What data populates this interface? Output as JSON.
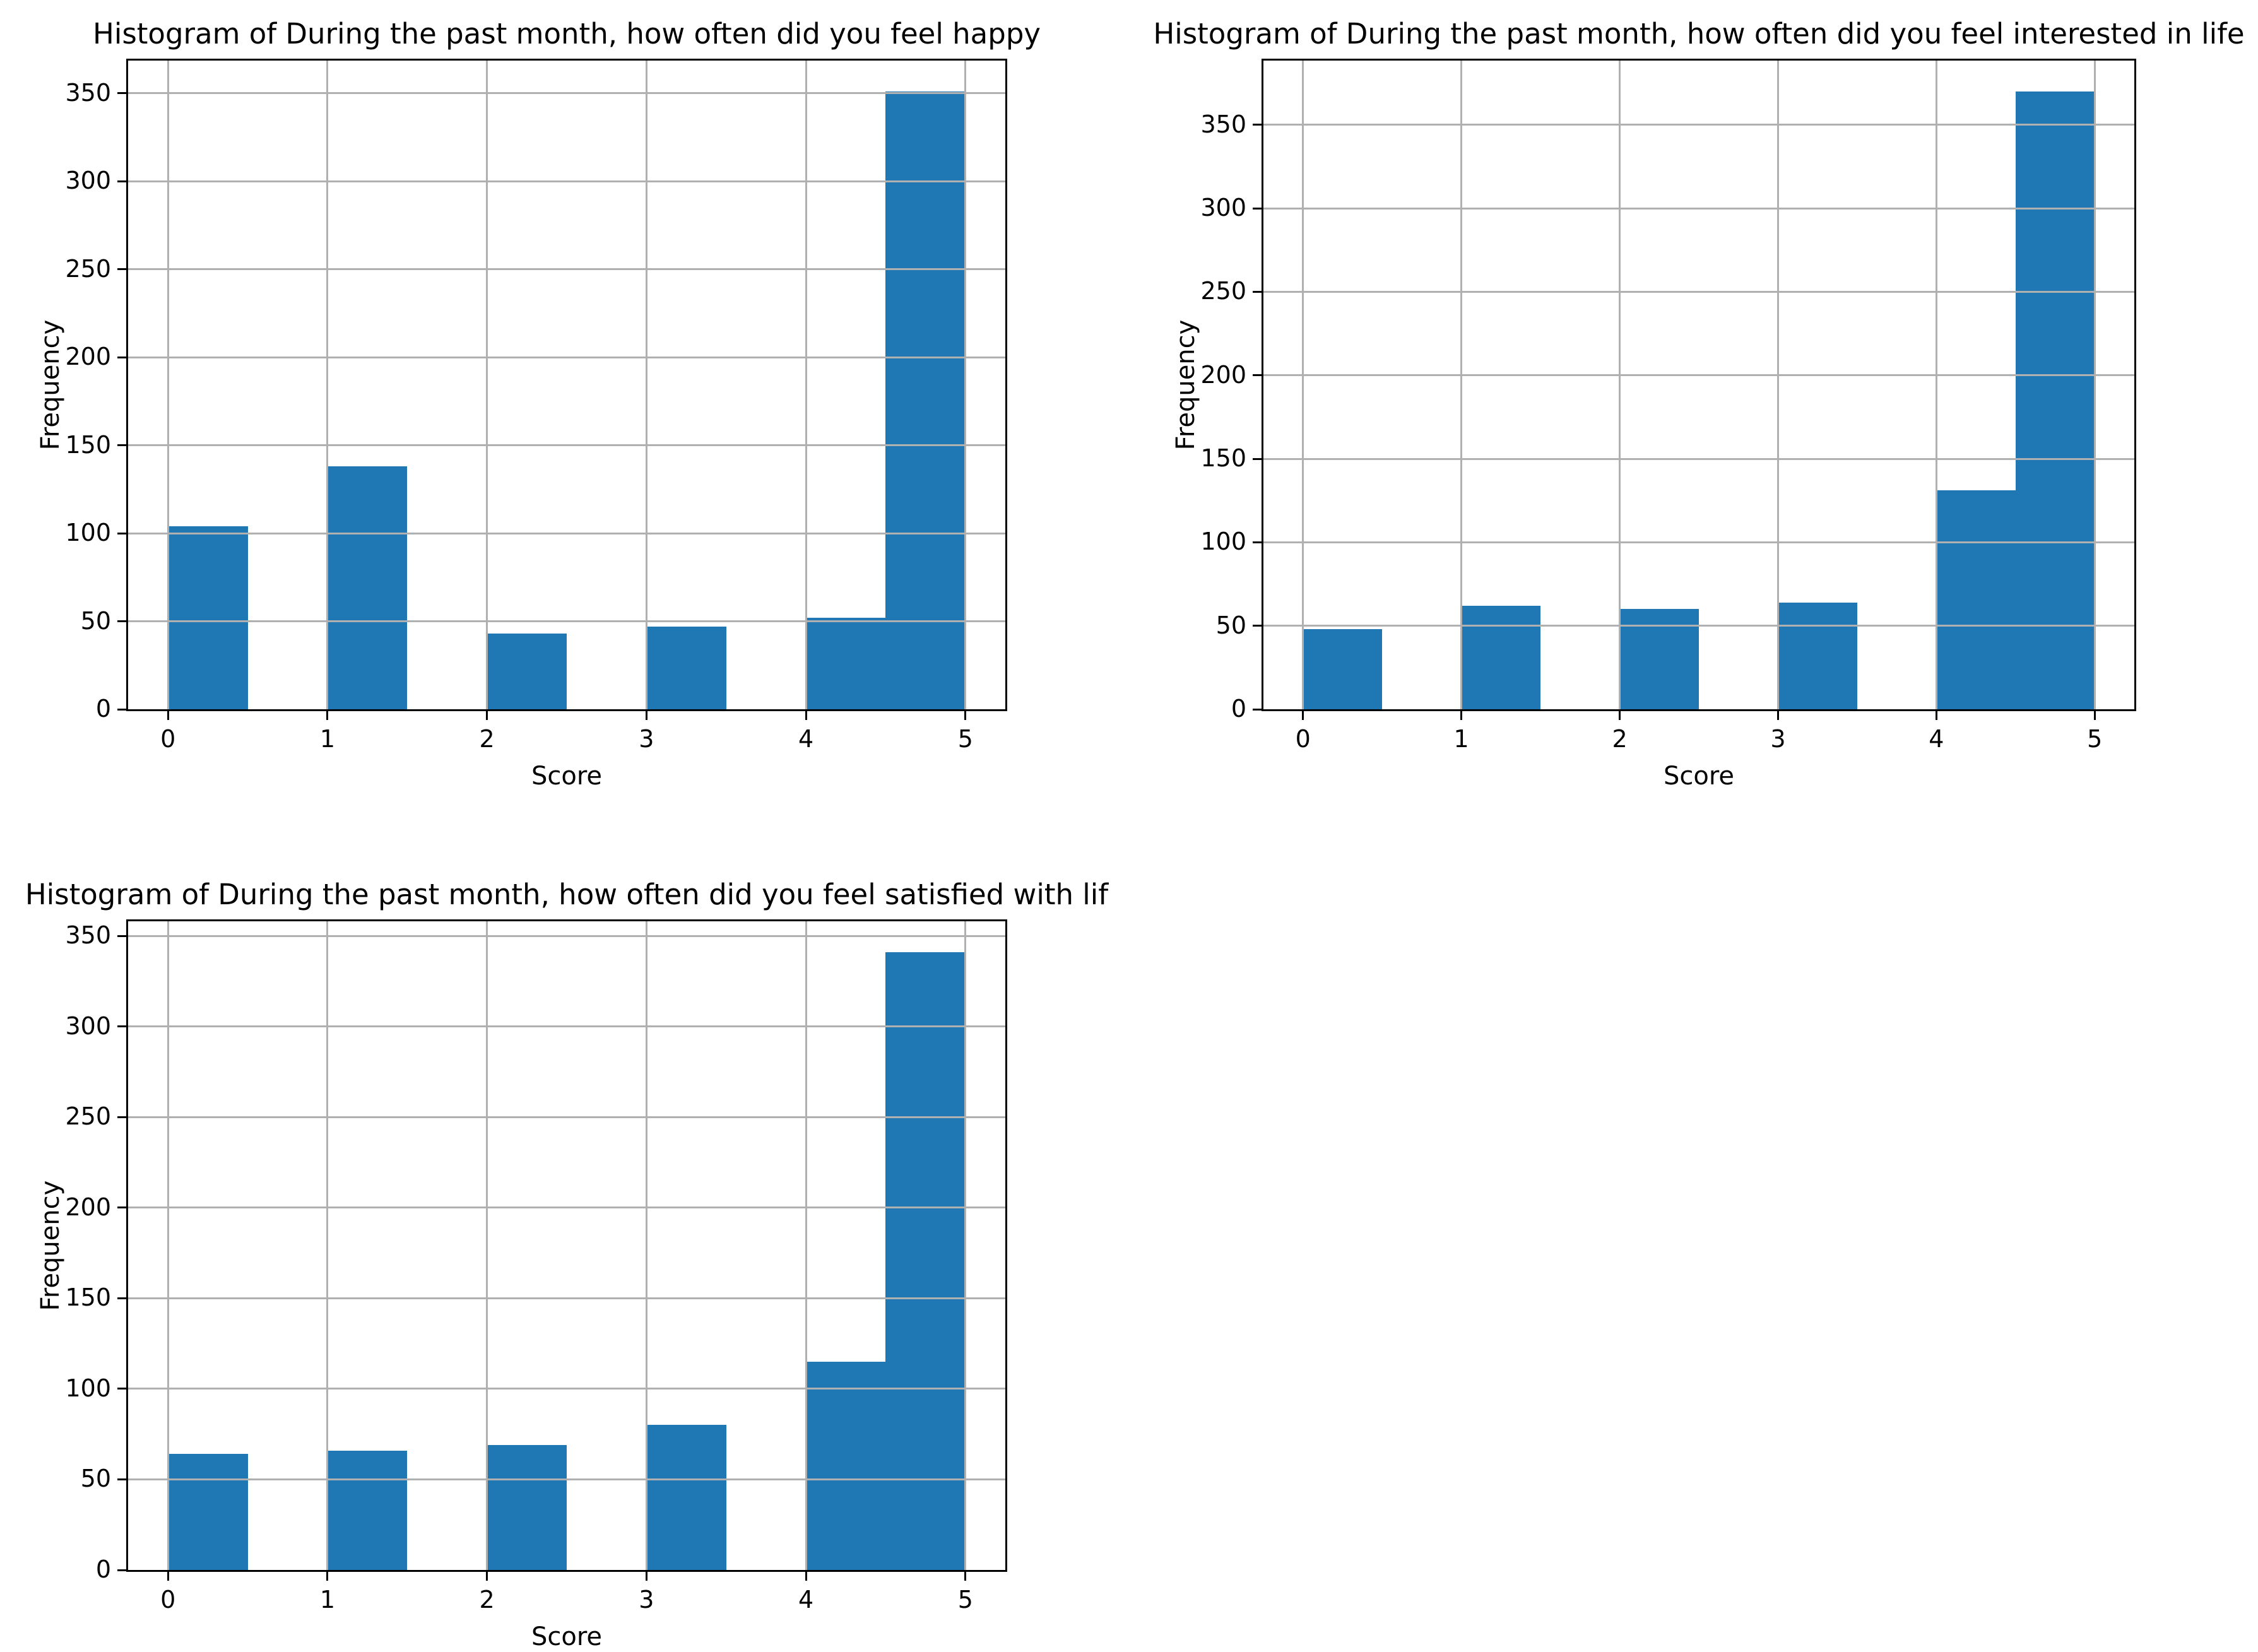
{
  "figure": {
    "background": "#ffffff",
    "bar_color": "#1f77b4",
    "grid_color": "#b0b0b0",
    "spine_color": "#000000"
  },
  "chart_data": [
    {
      "type": "bar",
      "subtype": "histogram",
      "title": "Histogram of During the past month, how often did you feel happy",
      "xlabel": "Score",
      "ylabel": "Frequency",
      "bar_color": "#1f77b4",
      "grid_color": "#b0b0b0",
      "grid": true,
      "legend": false,
      "xlim": [
        -0.25,
        5.25
      ],
      "ylim": [
        0,
        368.6
      ],
      "xticks": [
        0,
        1,
        2,
        3,
        4,
        5
      ],
      "yticks": [
        0,
        50,
        100,
        150,
        200,
        250,
        300,
        350
      ],
      "bins": [
        {
          "range": [
            0,
            0.5
          ],
          "count": 104
        },
        {
          "range": [
            0.5,
            1
          ],
          "count": 0
        },
        {
          "range": [
            1,
            1.5
          ],
          "count": 138
        },
        {
          "range": [
            1.5,
            2
          ],
          "count": 0
        },
        {
          "range": [
            2,
            2.5
          ],
          "count": 43
        },
        {
          "range": [
            2.5,
            3
          ],
          "count": 0
        },
        {
          "range": [
            3,
            3.5
          ],
          "count": 47
        },
        {
          "range": [
            3.5,
            4
          ],
          "count": 0
        },
        {
          "range": [
            4,
            4.5
          ],
          "count": 52
        },
        {
          "range": [
            4.5,
            5
          ],
          "count": 351
        }
      ]
    },
    {
      "type": "bar",
      "subtype": "histogram",
      "title": "Histogram of During the past month, how often did you feel interested in life",
      "xlabel": "Score",
      "ylabel": "Frequency",
      "bar_color": "#1f77b4",
      "grid_color": "#b0b0b0",
      "grid": true,
      "legend": false,
      "xlim": [
        -0.25,
        5.25
      ],
      "ylim": [
        0,
        388.5
      ],
      "xticks": [
        0,
        1,
        2,
        3,
        4,
        5
      ],
      "yticks": [
        0,
        50,
        100,
        150,
        200,
        250,
        300,
        350
      ],
      "bins": [
        {
          "range": [
            0,
            0.5
          ],
          "count": 48
        },
        {
          "range": [
            0.5,
            1
          ],
          "count": 0
        },
        {
          "range": [
            1,
            1.5
          ],
          "count": 62
        },
        {
          "range": [
            1.5,
            2
          ],
          "count": 0
        },
        {
          "range": [
            2,
            2.5
          ],
          "count": 60
        },
        {
          "range": [
            2.5,
            3
          ],
          "count": 0
        },
        {
          "range": [
            3,
            3.5
          ],
          "count": 64
        },
        {
          "range": [
            3.5,
            4
          ],
          "count": 0
        },
        {
          "range": [
            4,
            4.5
          ],
          "count": 131
        },
        {
          "range": [
            4.5,
            5
          ],
          "count": 370
        }
      ]
    },
    {
      "type": "bar",
      "subtype": "histogram",
      "title": "Histogram of During the past month, how often did you feel satisfied with lif",
      "xlabel": "Score",
      "ylabel": "Frequency",
      "bar_color": "#1f77b4",
      "grid_color": "#b0b0b0",
      "grid": true,
      "legend": false,
      "xlim": [
        -0.25,
        5.25
      ],
      "ylim": [
        0,
        358.1
      ],
      "xticks": [
        0,
        1,
        2,
        3,
        4,
        5
      ],
      "yticks": [
        0,
        50,
        100,
        150,
        200,
        250,
        300,
        350
      ],
      "bins": [
        {
          "range": [
            0,
            0.5
          ],
          "count": 64
        },
        {
          "range": [
            0.5,
            1
          ],
          "count": 0
        },
        {
          "range": [
            1,
            1.5
          ],
          "count": 66
        },
        {
          "range": [
            1.5,
            2
          ],
          "count": 0
        },
        {
          "range": [
            2,
            2.5
          ],
          "count": 69
        },
        {
          "range": [
            2.5,
            3
          ],
          "count": 0
        },
        {
          "range": [
            3,
            3.5
          ],
          "count": 80
        },
        {
          "range": [
            3.5,
            4
          ],
          "count": 0
        },
        {
          "range": [
            4,
            4.5
          ],
          "count": 115
        },
        {
          "range": [
            4.5,
            5
          ],
          "count": 341
        }
      ]
    }
  ]
}
